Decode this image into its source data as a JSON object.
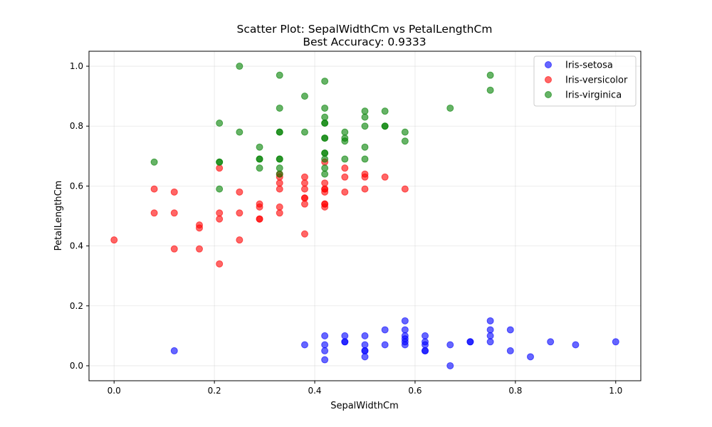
{
  "chart_data": {
    "type": "scatter",
    "title": "Scatter Plot: SepalWidthCm vs PetalLengthCm",
    "subtitle": "Best Accuracy: 0.9333",
    "xlabel": "SepalWidthCm",
    "ylabel": "PetalLengthCm",
    "xlim": [
      -0.05,
      1.05
    ],
    "ylim": [
      -0.05,
      1.05
    ],
    "xticks": [
      0.0,
      0.2,
      0.4,
      0.6,
      0.8,
      1.0
    ],
    "yticks": [
      0.0,
      0.2,
      0.4,
      0.6,
      0.8,
      1.0
    ],
    "xtick_labels": [
      "0.0",
      "0.2",
      "0.4",
      "0.6",
      "0.8",
      "1.0"
    ],
    "ytick_labels": [
      "0.0",
      "0.2",
      "0.4",
      "0.6",
      "0.8",
      "1.0"
    ],
    "grid": true,
    "legend_position": "top-right",
    "series": [
      {
        "name": "Iris-setosa",
        "color": "#0000ff",
        "points": [
          [
            0.12,
            0.05
          ],
          [
            0.38,
            0.07
          ],
          [
            0.42,
            0.1
          ],
          [
            0.42,
            0.07
          ],
          [
            0.42,
            0.05
          ],
          [
            0.42,
            0.02
          ],
          [
            0.46,
            0.1
          ],
          [
            0.46,
            0.08
          ],
          [
            0.46,
            0.08
          ],
          [
            0.5,
            0.1
          ],
          [
            0.5,
            0.07
          ],
          [
            0.5,
            0.05
          ],
          [
            0.5,
            0.05
          ],
          [
            0.5,
            0.03
          ],
          [
            0.54,
            0.12
          ],
          [
            0.54,
            0.07
          ],
          [
            0.58,
            0.15
          ],
          [
            0.58,
            0.12
          ],
          [
            0.58,
            0.1
          ],
          [
            0.58,
            0.09
          ],
          [
            0.58,
            0.08
          ],
          [
            0.58,
            0.07
          ],
          [
            0.62,
            0.1
          ],
          [
            0.62,
            0.08
          ],
          [
            0.62,
            0.07
          ],
          [
            0.62,
            0.05
          ],
          [
            0.62,
            0.05
          ],
          [
            0.67,
            0.07
          ],
          [
            0.67,
            0.0
          ],
          [
            0.71,
            0.08
          ],
          [
            0.71,
            0.08
          ],
          [
            0.75,
            0.15
          ],
          [
            0.75,
            0.12
          ],
          [
            0.75,
            0.1
          ],
          [
            0.75,
            0.08
          ],
          [
            0.79,
            0.12
          ],
          [
            0.79,
            0.05
          ],
          [
            0.83,
            0.03
          ],
          [
            0.87,
            0.08
          ],
          [
            0.92,
            0.07
          ],
          [
            1.0,
            0.08
          ]
        ]
      },
      {
        "name": "Iris-versicolor",
        "color": "#ff0000",
        "points": [
          [
            0.0,
            0.42
          ],
          [
            0.08,
            0.59
          ],
          [
            0.08,
            0.51
          ],
          [
            0.12,
            0.58
          ],
          [
            0.12,
            0.51
          ],
          [
            0.12,
            0.39
          ],
          [
            0.17,
            0.47
          ],
          [
            0.17,
            0.46
          ],
          [
            0.17,
            0.39
          ],
          [
            0.21,
            0.66
          ],
          [
            0.21,
            0.51
          ],
          [
            0.21,
            0.49
          ],
          [
            0.21,
            0.34
          ],
          [
            0.25,
            0.58
          ],
          [
            0.25,
            0.51
          ],
          [
            0.25,
            0.42
          ],
          [
            0.29,
            0.54
          ],
          [
            0.29,
            0.53
          ],
          [
            0.29,
            0.49
          ],
          [
            0.29,
            0.49
          ],
          [
            0.33,
            0.64
          ],
          [
            0.33,
            0.63
          ],
          [
            0.33,
            0.61
          ],
          [
            0.33,
            0.59
          ],
          [
            0.33,
            0.53
          ],
          [
            0.33,
            0.51
          ],
          [
            0.38,
            0.63
          ],
          [
            0.38,
            0.61
          ],
          [
            0.38,
            0.59
          ],
          [
            0.38,
            0.56
          ],
          [
            0.38,
            0.56
          ],
          [
            0.38,
            0.54
          ],
          [
            0.38,
            0.44
          ],
          [
            0.42,
            0.68
          ],
          [
            0.42,
            0.61
          ],
          [
            0.42,
            0.59
          ],
          [
            0.42,
            0.59
          ],
          [
            0.42,
            0.58
          ],
          [
            0.42,
            0.54
          ],
          [
            0.42,
            0.54
          ],
          [
            0.42,
            0.53
          ],
          [
            0.46,
            0.66
          ],
          [
            0.46,
            0.63
          ],
          [
            0.46,
            0.58
          ],
          [
            0.5,
            0.64
          ],
          [
            0.5,
            0.63
          ],
          [
            0.5,
            0.59
          ],
          [
            0.54,
            0.63
          ],
          [
            0.58,
            0.59
          ]
        ]
      },
      {
        "name": "Iris-virginica",
        "color": "#008000",
        "points": [
          [
            0.08,
            0.68
          ],
          [
            0.21,
            0.81
          ],
          [
            0.21,
            0.68
          ],
          [
            0.21,
            0.68
          ],
          [
            0.21,
            0.59
          ],
          [
            0.25,
            1.0
          ],
          [
            0.25,
            0.78
          ],
          [
            0.29,
            0.73
          ],
          [
            0.29,
            0.69
          ],
          [
            0.29,
            0.69
          ],
          [
            0.29,
            0.66
          ],
          [
            0.33,
            0.97
          ],
          [
            0.33,
            0.86
          ],
          [
            0.33,
            0.78
          ],
          [
            0.33,
            0.78
          ],
          [
            0.33,
            0.69
          ],
          [
            0.33,
            0.69
          ],
          [
            0.33,
            0.66
          ],
          [
            0.33,
            0.64
          ],
          [
            0.38,
            0.9
          ],
          [
            0.38,
            0.78
          ],
          [
            0.42,
            0.95
          ],
          [
            0.42,
            0.86
          ],
          [
            0.42,
            0.83
          ],
          [
            0.42,
            0.81
          ],
          [
            0.42,
            0.81
          ],
          [
            0.42,
            0.76
          ],
          [
            0.42,
            0.76
          ],
          [
            0.42,
            0.71
          ],
          [
            0.42,
            0.71
          ],
          [
            0.42,
            0.69
          ],
          [
            0.42,
            0.66
          ],
          [
            0.42,
            0.64
          ],
          [
            0.46,
            0.78
          ],
          [
            0.46,
            0.76
          ],
          [
            0.46,
            0.75
          ],
          [
            0.46,
            0.69
          ],
          [
            0.5,
            0.85
          ],
          [
            0.5,
            0.83
          ],
          [
            0.5,
            0.8
          ],
          [
            0.5,
            0.73
          ],
          [
            0.5,
            0.69
          ],
          [
            0.54,
            0.85
          ],
          [
            0.54,
            0.8
          ],
          [
            0.54,
            0.8
          ],
          [
            0.58,
            0.78
          ],
          [
            0.58,
            0.75
          ],
          [
            0.67,
            0.86
          ],
          [
            0.75,
            0.97
          ],
          [
            0.75,
            0.92
          ]
        ]
      }
    ]
  }
}
